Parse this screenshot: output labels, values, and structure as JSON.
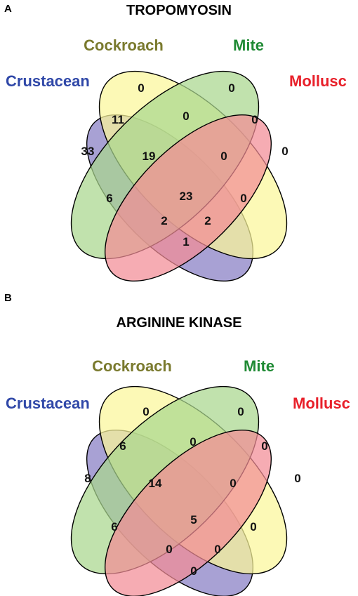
{
  "panels": [
    {
      "letter": "A",
      "title": "TROPOMYOSIN",
      "sets": [
        {
          "name": "Crustacean",
          "color": "#3048a8",
          "fill": "#8f87c8"
        },
        {
          "name": "Cockroach",
          "color": "#7a7a2e",
          "fill": "#fbf69a"
        },
        {
          "name": "Mite",
          "color": "#1f8a34",
          "fill": "#a9d78e"
        },
        {
          "name": "Mollusc",
          "color": "#e8202a",
          "fill": "#f28c95"
        }
      ],
      "regions": {
        "crustacean_only": "33",
        "cockroach_only": "0",
        "mite_only": "0",
        "mollusc_only": "0",
        "crustacean_cockroach": "11",
        "cockroach_mite": "0",
        "mite_mollusc": "0",
        "crustacean_cockroach_mite": "19",
        "cockroach_mite_mollusc": "0",
        "crustacean_mite": "6",
        "cockroach_mollusc": "0",
        "all_four": "23",
        "crustacean_mite_mollusc": "2",
        "crustacean_cockroach_mollusc": "2",
        "crustacean_mollusc": "1"
      }
    },
    {
      "letter": "B",
      "title": "ARGININE KINASE",
      "sets": [
        {
          "name": "Crustacean",
          "color": "#3048a8",
          "fill": "#8f87c8"
        },
        {
          "name": "Cockroach",
          "color": "#7a7a2e",
          "fill": "#fbf69a"
        },
        {
          "name": "Mite",
          "color": "#1f8a34",
          "fill": "#a9d78e"
        },
        {
          "name": "Mollusc",
          "color": "#e8202a",
          "fill": "#f28c95"
        }
      ],
      "regions": {
        "crustacean_only": "8",
        "cockroach_only": "0",
        "mite_only": "0",
        "mollusc_only": "0",
        "crustacean_cockroach": "6",
        "cockroach_mite": "0",
        "mite_mollusc": "0",
        "crustacean_cockroach_mite": "14",
        "cockroach_mite_mollusc": "0",
        "crustacean_mite": "6",
        "cockroach_mollusc": "0",
        "all_four": "5",
        "crustacean_mite_mollusc": "0",
        "crustacean_cockroach_mollusc": "0",
        "crustacean_mollusc": "0"
      }
    }
  ]
}
